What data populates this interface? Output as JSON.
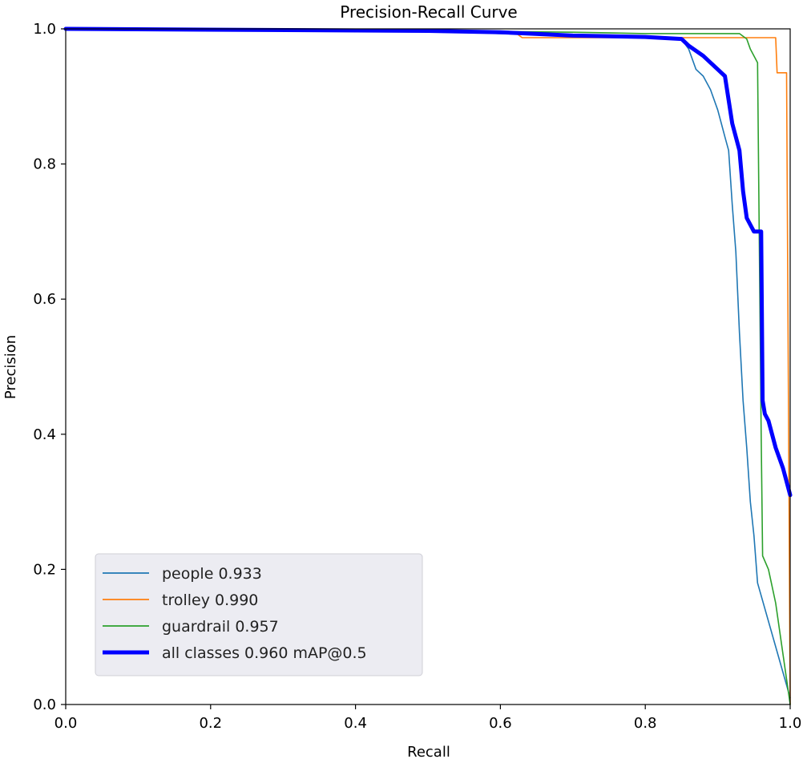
{
  "chart_data": {
    "type": "line",
    "title": "Precision-Recall Curve",
    "xlabel": "Recall",
    "ylabel": "Precision",
    "xlim": [
      0,
      1
    ],
    "ylim": [
      0,
      1
    ],
    "xticks": [
      "0.0",
      "0.2",
      "0.4",
      "0.6",
      "0.8",
      "1.0"
    ],
    "yticks": [
      "0.0",
      "0.2",
      "0.4",
      "0.6",
      "0.8",
      "1.0"
    ],
    "grid": false,
    "legend_position": "lower-left",
    "series": [
      {
        "name": "people 0.933",
        "color": "#1f77b4",
        "width": "thin",
        "x": [
          0,
          0.5,
          0.6,
          0.7,
          0.8,
          0.85,
          0.86,
          0.87,
          0.88,
          0.89,
          0.9,
          0.905,
          0.91,
          0.915,
          0.92,
          0.925,
          0.93,
          0.935,
          0.94,
          0.945,
          0.95,
          0.955,
          1.0
        ],
        "y": [
          1.0,
          0.997,
          0.993,
          0.99,
          0.988,
          0.985,
          0.97,
          0.94,
          0.93,
          0.91,
          0.88,
          0.86,
          0.84,
          0.82,
          0.74,
          0.67,
          0.55,
          0.45,
          0.38,
          0.3,
          0.25,
          0.18,
          0.01
        ]
      },
      {
        "name": "trolley 0.990",
        "color": "#ff7f0e",
        "width": "thin",
        "x": [
          0,
          0.62,
          0.63,
          0.7,
          0.8,
          0.9,
          0.95,
          0.98,
          0.982,
          0.99,
          0.995,
          1.0
        ],
        "y": [
          1.0,
          0.995,
          0.987,
          0.987,
          0.987,
          0.987,
          0.987,
          0.987,
          0.935,
          0.935,
          0.935,
          0.0
        ]
      },
      {
        "name": "guardrail 0.957",
        "color": "#2ca02c",
        "width": "thin",
        "x": [
          0,
          0.5,
          0.7,
          0.8,
          0.9,
          0.93,
          0.94,
          0.945,
          0.95,
          0.955,
          0.96,
          0.962,
          0.97,
          0.98,
          1.0
        ],
        "y": [
          1.0,
          0.997,
          0.995,
          0.993,
          0.993,
          0.993,
          0.985,
          0.97,
          0.96,
          0.95,
          0.4,
          0.22,
          0.2,
          0.15,
          0.0
        ]
      },
      {
        "name": "all classes 0.960 mAP@0.5",
        "color": "#0000ff",
        "width": "thick",
        "x": [
          0,
          0.5,
          0.6,
          0.7,
          0.8,
          0.85,
          0.86,
          0.88,
          0.9,
          0.91,
          0.92,
          0.93,
          0.935,
          0.94,
          0.95,
          0.96,
          0.962,
          0.965,
          0.97,
          0.975,
          0.98,
          0.99,
          1.0
        ],
        "y": [
          1.0,
          0.997,
          0.995,
          0.99,
          0.988,
          0.985,
          0.975,
          0.96,
          0.94,
          0.93,
          0.86,
          0.82,
          0.76,
          0.72,
          0.7,
          0.7,
          0.45,
          0.43,
          0.42,
          0.4,
          0.38,
          0.35,
          0.31
        ]
      }
    ]
  }
}
